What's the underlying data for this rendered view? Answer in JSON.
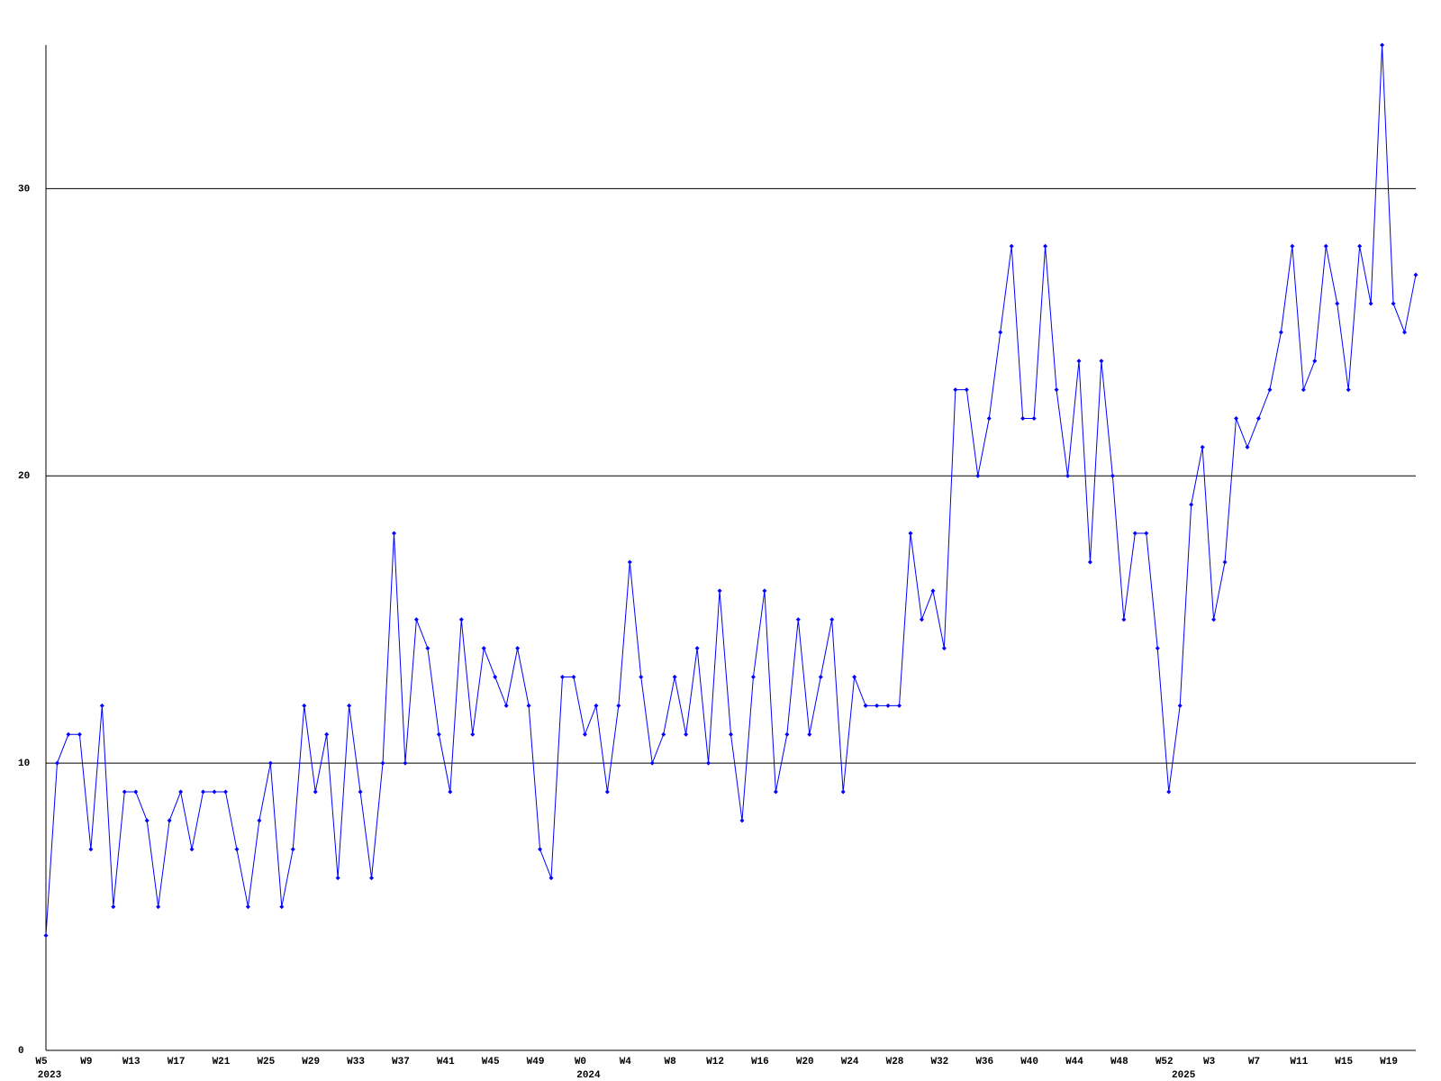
{
  "chart_data": {
    "type": "line",
    "color": "#0000ff",
    "ylim": [
      0,
      35
    ],
    "yticks": [
      0,
      10,
      20,
      30
    ],
    "grid": true,
    "categories": [
      "W5",
      null,
      null,
      null,
      "W9",
      null,
      null,
      null,
      "W13",
      null,
      null,
      null,
      "W17",
      null,
      null,
      null,
      "W21",
      null,
      null,
      null,
      "W25",
      null,
      null,
      null,
      "W29",
      null,
      null,
      null,
      "W33",
      null,
      null,
      null,
      "W37",
      null,
      null,
      null,
      "W41",
      null,
      null,
      null,
      "W45",
      null,
      null,
      null,
      "W49",
      null,
      null,
      null,
      "W0",
      null,
      null,
      null,
      "W4",
      null,
      null,
      null,
      "W8",
      null,
      null,
      null,
      "W12",
      null,
      null,
      null,
      "W16",
      null,
      null,
      null,
      "W20",
      null,
      null,
      null,
      "W24",
      null,
      null,
      null,
      "W28",
      null,
      null,
      null,
      "W32",
      null,
      null,
      null,
      "W36",
      null,
      null,
      null,
      "W40",
      null,
      null,
      null,
      "W44",
      null,
      null,
      null,
      "W48",
      null,
      null,
      null,
      "W52",
      null,
      null,
      null,
      "W3",
      null,
      null,
      null,
      "W7",
      null,
      null,
      null,
      "W11",
      null,
      null,
      null,
      "W15",
      null,
      null,
      null,
      "W19",
      null,
      null
    ],
    "category_years": [
      "2023",
      null,
      null,
      null,
      null,
      null,
      null,
      null,
      null,
      null,
      null,
      null,
      null,
      null,
      null,
      null,
      null,
      null,
      null,
      null,
      null,
      null,
      null,
      null,
      null,
      null,
      null,
      null,
      null,
      null,
      null,
      null,
      null,
      null,
      null,
      null,
      null,
      null,
      null,
      null,
      null,
      null,
      null,
      null,
      null,
      null,
      null,
      null,
      "2024",
      null,
      null,
      null,
      null,
      null,
      null,
      null,
      null,
      null,
      null,
      null,
      null,
      null,
      null,
      null,
      null,
      null,
      null,
      null,
      null,
      null,
      null,
      null,
      null,
      null,
      null,
      null,
      null,
      null,
      null,
      null,
      null,
      null,
      null,
      null,
      null,
      null,
      null,
      null,
      null,
      null,
      null,
      null,
      null,
      null,
      null,
      null,
      null,
      null,
      null,
      null,
      null,
      "2025",
      null,
      null,
      null,
      null,
      null,
      null,
      null,
      null,
      null,
      null,
      null,
      null,
      null,
      null,
      null,
      null,
      null,
      null,
      null,
      null,
      null
    ],
    "values": [
      4,
      10,
      11,
      11,
      7,
      12,
      5,
      9,
      9,
      8,
      5,
      8,
      9,
      7,
      9,
      9,
      9,
      7,
      5,
      8,
      10,
      5,
      7,
      12,
      9,
      11,
      6,
      12,
      9,
      6,
      10,
      18,
      10,
      15,
      14,
      11,
      9,
      15,
      11,
      14,
      13,
      12,
      14,
      12,
      7,
      6,
      13,
      13,
      11,
      12,
      9,
      12,
      17,
      13,
      10,
      11,
      13,
      11,
      14,
      10,
      16,
      11,
      8,
      13,
      16,
      9,
      11,
      15,
      11,
      13,
      15,
      9,
      13,
      12,
      12,
      12,
      12,
      18,
      15,
      16,
      14,
      23,
      23,
      20,
      22,
      25,
      28,
      22,
      22,
      28,
      23,
      20,
      24,
      17,
      24,
      20,
      15,
      18,
      18,
      14,
      9,
      12,
      19,
      21,
      15,
      17,
      22,
      21,
      22,
      23,
      25,
      28,
      23,
      24,
      28,
      26,
      23,
      28,
      26,
      35,
      26,
      25,
      27
    ]
  }
}
